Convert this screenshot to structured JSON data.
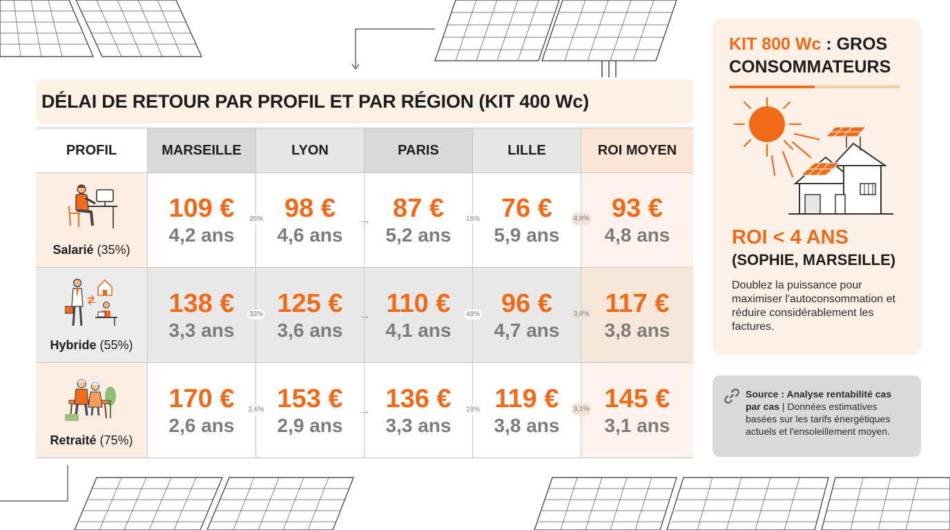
{
  "title": "DÉLAI DE RETOUR PAR PROFIL ET PAR RÉGION (KIT 400 Wc)",
  "table": {
    "headers": [
      "PROFIL",
      "MARSEILLE",
      "LYON",
      "PARIS",
      "LILLE",
      "ROI MOYEN"
    ],
    "rows": [
      {
        "profile": "Salarié",
        "share": "(35%)",
        "icon": "office-worker-icon",
        "cells": [
          {
            "price": "109 €",
            "years": "4,2 ans"
          },
          {
            "price": "98 €",
            "years": "4,6 ans"
          },
          {
            "price": "87 €",
            "years": "5,2 ans"
          },
          {
            "price": "76 €",
            "years": "5,9 ans"
          },
          {
            "price": "93 €",
            "years": "4,8 ans"
          }
        ],
        "separators": [
          "35%",
          "→",
          "16%",
          "4,8%"
        ]
      },
      {
        "profile": "Hybride",
        "share": "(55%)",
        "icon": "hybrid-worker-icon",
        "cells": [
          {
            "price": "138 €",
            "years": "3,3 ans"
          },
          {
            "price": "125 €",
            "years": "3,6 ans"
          },
          {
            "price": "110 €",
            "years": "4,1 ans"
          },
          {
            "price": "96 €",
            "years": "4,7 ans"
          },
          {
            "price": "117 €",
            "years": "3,8 ans"
          }
        ],
        "separators": [
          "33%",
          "→",
          "48%",
          "3,8%"
        ]
      },
      {
        "profile": "Retraité",
        "share": "(75%)",
        "icon": "retired-couple-icon",
        "cells": [
          {
            "price": "170 €",
            "years": "2,6 ans"
          },
          {
            "price": "153 €",
            "years": "2,9 ans"
          },
          {
            "price": "136 €",
            "years": "3,3 ans"
          },
          {
            "price": "119 €",
            "years": "3,8 ans"
          },
          {
            "price": "145 €",
            "years": "3,1 ans"
          }
        ],
        "separators": [
          "2,6%",
          "→",
          "19%",
          "3,1%"
        ]
      }
    ]
  },
  "side_panel": {
    "kit_label": "KIT 800 Wc",
    "kit_rest": " : GROS",
    "title_line2": "CONSOMMATEURS",
    "roi": "ROI < 4 ANS",
    "roi_sub": "(SOPHIE, MARSEILLE)",
    "description": "Doublez la puissance pour maximiser l'autoconsommation et réduire considérablement les factures."
  },
  "source": {
    "label": "Source : Analyse rentabilité cas par cas",
    "text": " | Données estimatives basées sur les tarifs énergétiques actuels et l'ensoleillement moyen."
  },
  "colors": {
    "accent": "#f06a1a",
    "panel_bg": "#fdf1e7",
    "grey_text": "#7c7c7c"
  }
}
